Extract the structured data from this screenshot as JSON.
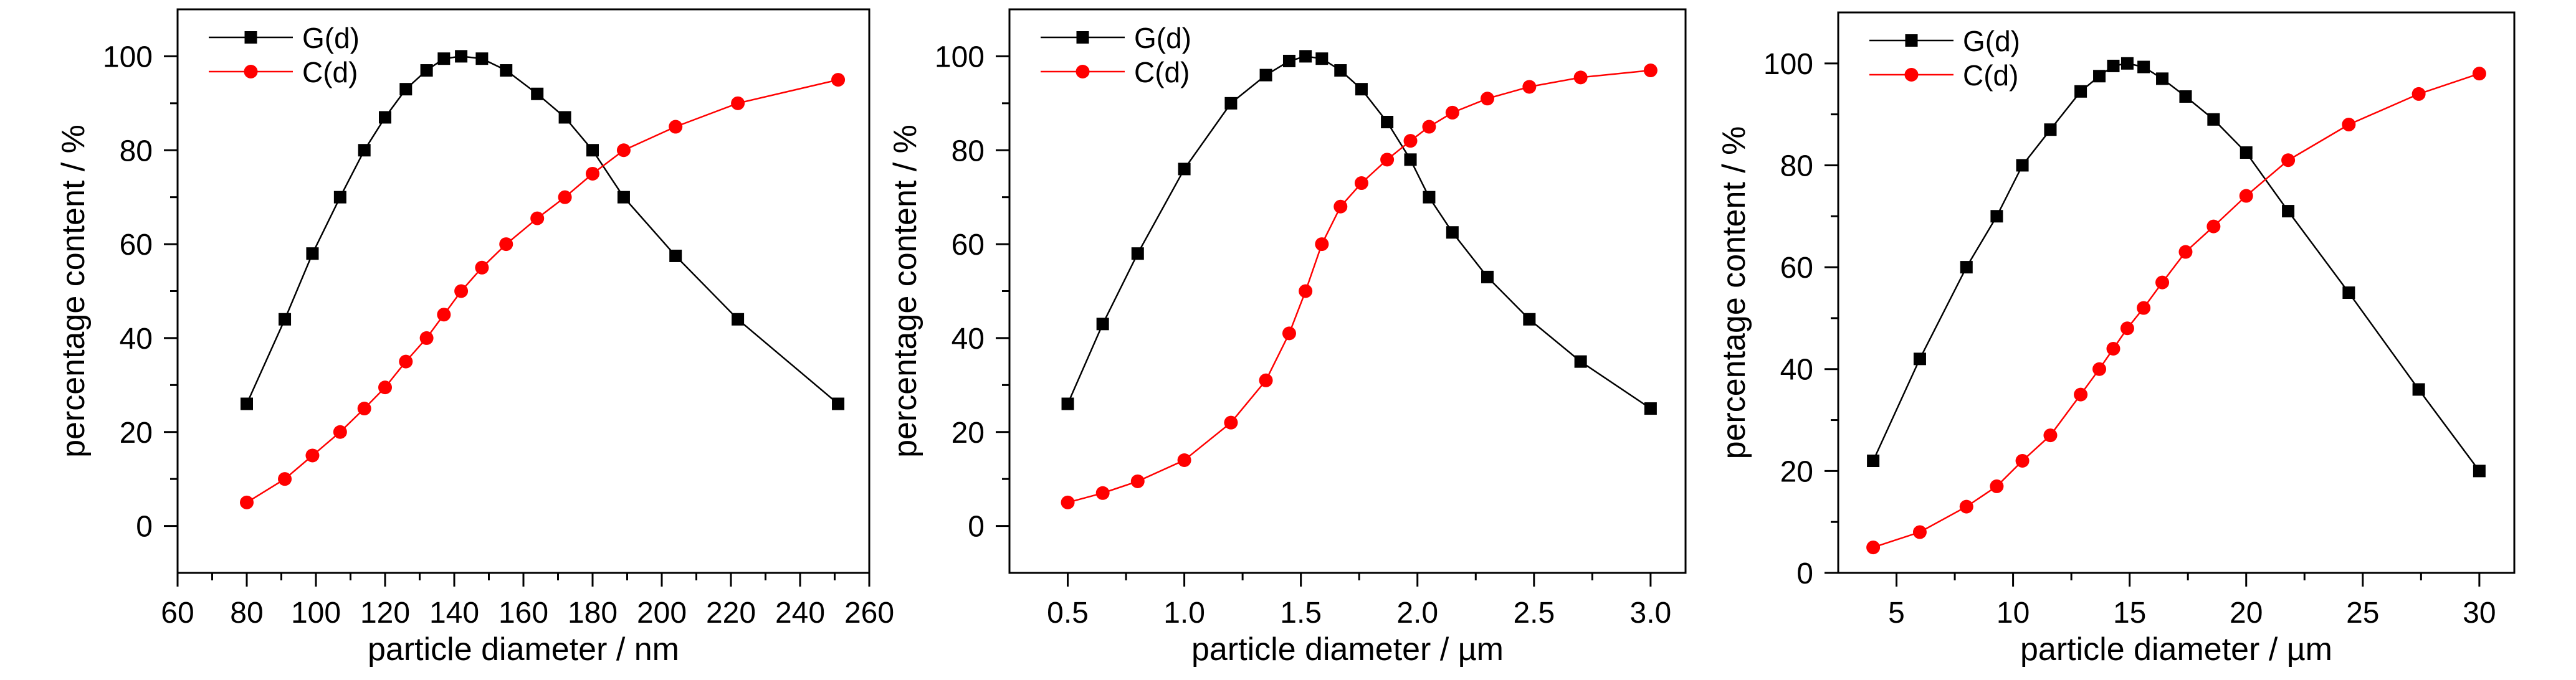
{
  "colors": {
    "g_series": "#000000",
    "c_series": "#ff0000",
    "axis": "#000000"
  },
  "chart_data": [
    {
      "type": "line",
      "xlabel": "particle diameter / nm",
      "ylabel": "percentage content / %",
      "xlim": [
        60,
        260
      ],
      "ylim": [
        -10,
        110
      ],
      "xticks": [
        "60",
        "80",
        "100",
        "120",
        "140",
        "160",
        "180",
        "200",
        "220",
        "240",
        "260"
      ],
      "yticks": [
        "0",
        "20",
        "40",
        "60",
        "80",
        "100"
      ],
      "legend_position": "top-left",
      "grid": false,
      "series": [
        {
          "name": "G(d)",
          "marker": "square",
          "x": [
            80,
            91,
            99,
            107,
            114,
            120,
            126,
            132,
            137,
            142,
            148,
            155,
            164,
            172,
            180,
            189,
            204,
            222,
            251
          ],
          "y": [
            26,
            44,
            58,
            70,
            80,
            87,
            93,
            97,
            99.5,
            100,
            99.5,
            97,
            92,
            87,
            80,
            70,
            57.5,
            44,
            26
          ]
        },
        {
          "name": "C(d)",
          "marker": "circle",
          "x": [
            80,
            91,
            99,
            107,
            114,
            120,
            126,
            132,
            137,
            142,
            148,
            155,
            164,
            172,
            180,
            189,
            204,
            222,
            251
          ],
          "y": [
            5,
            10,
            15,
            20,
            25,
            29.5,
            35,
            40,
            45,
            50,
            55,
            60,
            65.5,
            70,
            75,
            80,
            85,
            90,
            95
          ]
        }
      ]
    },
    {
      "type": "line",
      "xlabel": "particle diameter / µm",
      "ylabel": "percentage content / %",
      "xlim": [
        0.25,
        3.15
      ],
      "ylim": [
        -10,
        110
      ],
      "xticks": [
        "0.5",
        "1.0",
        "1.5",
        "2.0",
        "2.5",
        "3.0"
      ],
      "yticks": [
        "0",
        "20",
        "40",
        "60",
        "80",
        "100"
      ],
      "legend_position": "top-left",
      "grid": false,
      "series": [
        {
          "name": "G(d)",
          "marker": "square",
          "x": [
            0.5,
            0.65,
            0.8,
            1.0,
            1.2,
            1.35,
            1.45,
            1.52,
            1.59,
            1.67,
            1.76,
            1.87,
            1.97,
            2.05,
            2.15,
            2.3,
            2.48,
            2.7,
            3.0
          ],
          "y": [
            26,
            43,
            58,
            76,
            90,
            96,
            99,
            100,
            99.5,
            97,
            93,
            86,
            78,
            70,
            62.5,
            53,
            44,
            35,
            25
          ]
        },
        {
          "name": "C(d)",
          "marker": "circle",
          "x": [
            0.5,
            0.65,
            0.8,
            1.0,
            1.2,
            1.35,
            1.45,
            1.52,
            1.59,
            1.67,
            1.76,
            1.87,
            1.97,
            2.05,
            2.15,
            2.3,
            2.48,
            2.7,
            3.0
          ],
          "y": [
            5,
            7,
            9.5,
            14,
            22,
            31,
            41,
            50,
            60,
            68,
            73,
            78,
            82,
            85,
            88,
            91,
            93.5,
            95.5,
            97
          ]
        }
      ]
    },
    {
      "type": "line",
      "xlabel": "particle diameter / µm",
      "ylabel": "percentage content / %",
      "xlim": [
        2.5,
        31.5
      ],
      "ylim": [
        0,
        110
      ],
      "xticks": [
        "5",
        "10",
        "15",
        "20",
        "25",
        "30"
      ],
      "yticks": [
        "0",
        "20",
        "40",
        "60",
        "80",
        "100"
      ],
      "legend_position": "top-left",
      "grid": false,
      "series": [
        {
          "name": "G(d)",
          "marker": "square",
          "x": [
            4,
            6,
            8,
            9.3,
            10.4,
            11.6,
            12.9,
            13.7,
            14.3,
            14.9,
            15.6,
            16.4,
            17.4,
            18.6,
            20,
            21.8,
            24.4,
            27.4,
            30
          ],
          "y": [
            22,
            42,
            60,
            70,
            80,
            87,
            94.5,
            97.5,
            99.5,
            100,
            99.3,
            97,
            93.5,
            89,
            82.5,
            71,
            55,
            36,
            20
          ]
        },
        {
          "name": "C(d)",
          "marker": "circle",
          "x": [
            4,
            6,
            8,
            9.3,
            10.4,
            11.6,
            12.9,
            13.7,
            14.3,
            14.9,
            15.6,
            16.4,
            17.4,
            18.6,
            20,
            21.8,
            24.4,
            27.4,
            30
          ],
          "y": [
            5,
            8,
            13,
            17,
            22,
            27,
            35,
            40,
            44,
            48,
            52,
            57,
            63,
            68,
            74,
            81,
            88,
            94,
            98
          ]
        }
      ]
    }
  ]
}
